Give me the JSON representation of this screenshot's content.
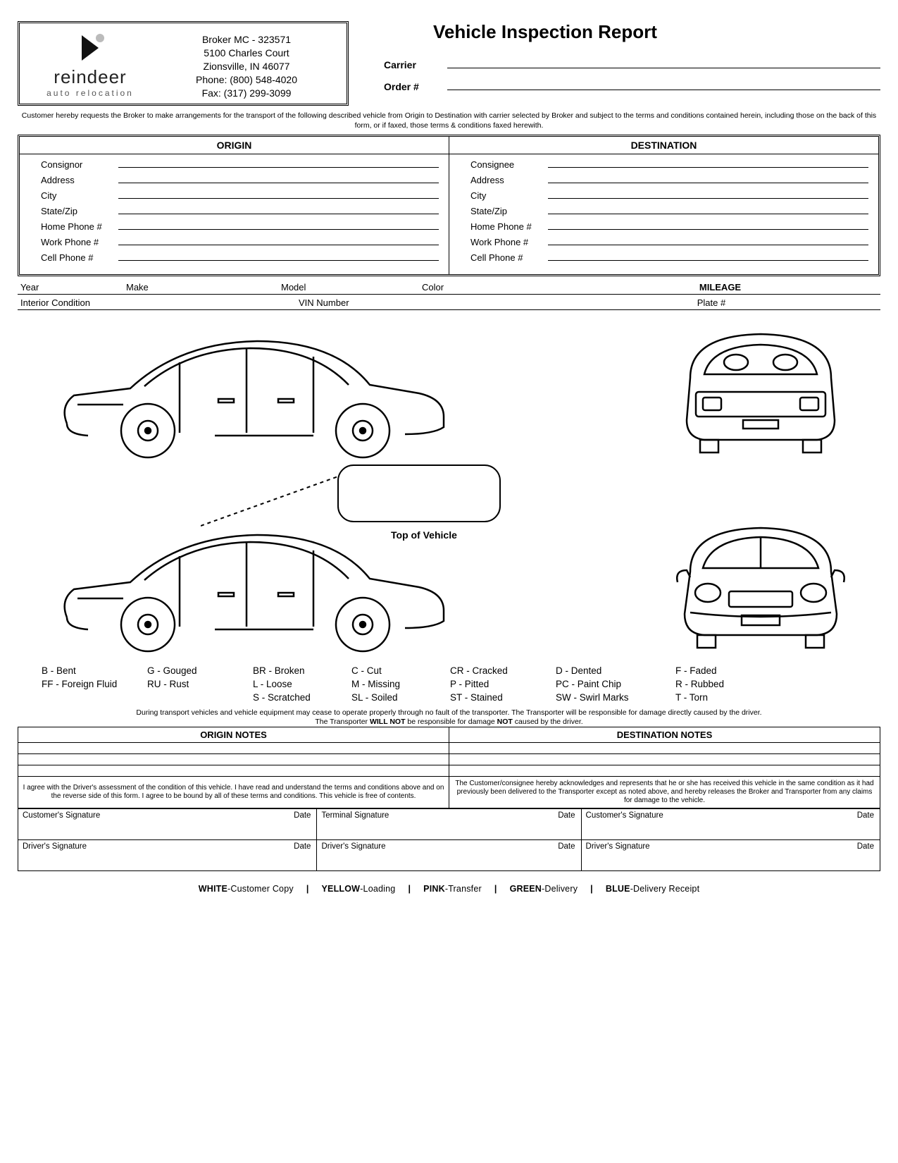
{
  "header": {
    "logo_name": "reindeer",
    "logo_sub": "auto relocation",
    "broker_lines": [
      "Broker MC - 323571",
      "5100 Charles Court",
      "Zionsville, IN 46077",
      "Phone: (800) 548-4020",
      "Fax: (317) 299-3099"
    ],
    "report_title": "Vehicle Inspection Report",
    "carrier_label": "Carrier",
    "order_label": "Order #"
  },
  "disclaimer_top": "Customer hereby requests the Broker to make arrangements for the transport of the following described vehicle from Origin to Destination with carrier selected by Broker and subject to the terms and conditions contained herein, including those on the back of this form, or if faxed, those terms & conditions faxed herewith.",
  "origin": {
    "title": "ORIGIN",
    "fields": [
      "Consignor",
      "Address",
      "City",
      "State/Zip",
      "Home Phone #",
      "Work Phone #",
      "Cell Phone #"
    ]
  },
  "destination": {
    "title": "DESTINATION",
    "fields": [
      "Consignee",
      "Address",
      "City",
      "State/Zip",
      "Home Phone #",
      "Work Phone #",
      "Cell Phone #"
    ]
  },
  "vehicle_row1": [
    "Year",
    "Make",
    "Model",
    "Color",
    "MILEAGE"
  ],
  "vehicle_row2": [
    "Interior Condition",
    "VIN Number",
    "Plate #"
  ],
  "top_of_vehicle": "Top of Vehicle",
  "codes": [
    [
      "B - Bent",
      "G - Gouged",
      "BR - Broken",
      "C - Cut",
      "CR - Cracked",
      "D - Dented",
      "F - Faded"
    ],
    [
      "FF - Foreign Fluid",
      "RU - Rust",
      "L - Loose",
      "M - Missing",
      "P - Pitted",
      "PC - Paint Chip",
      "R - Rubbed"
    ],
    [
      "",
      "",
      "S - Scratched",
      "SL - Soiled",
      "ST - Stained",
      "SW - Swirl Marks",
      "T - Torn"
    ]
  ],
  "disclaimer_mid_1": "During transport vehicles and vehicle equipment may cease to operate properly through no fault of the transporter. The Transporter will be responsible for damage directly caused by the driver.",
  "disclaimer_mid_2a": "The Transporter ",
  "disclaimer_mid_2b": "WILL NOT",
  "disclaimer_mid_2c": " be responsible for damage ",
  "disclaimer_mid_2d": "NOT",
  "disclaimer_mid_2e": " caused by the driver.",
  "notes": {
    "origin_title": "ORIGIN NOTES",
    "dest_title": "DESTINATION NOTES",
    "origin_ack": "I agree with the Driver's assessment of the condition of this vehicle. I have read and understand the terms and conditions above and on the reverse side of this form. I agree to be bound by all of these terms and conditions. This vehicle is free of contents.",
    "dest_ack": "The Customer/consignee hereby acknowledges and represents that he or she has received this vehicle in the same condition as it had previously been delivered to the Transporter except as noted above, and hereby releases the Broker and Transporter from any claims for damage to the vehicle."
  },
  "signatures": {
    "row1": [
      "Customer's Signature",
      "Terminal Signature",
      "Customer's Signature"
    ],
    "row2": [
      "Driver's Signature",
      "Driver's Signature",
      "Driver's Signature"
    ],
    "date_label": "Date"
  },
  "copies": [
    {
      "color": "WHITE",
      "label": "-Customer Copy"
    },
    {
      "color": "YELLOW",
      "label": "-Loading"
    },
    {
      "color": "PINK",
      "label": "-Transfer"
    },
    {
      "color": "GREEN",
      "label": "-Delivery"
    },
    {
      "color": "BLUE",
      "label": "-Delivery Receipt"
    }
  ]
}
